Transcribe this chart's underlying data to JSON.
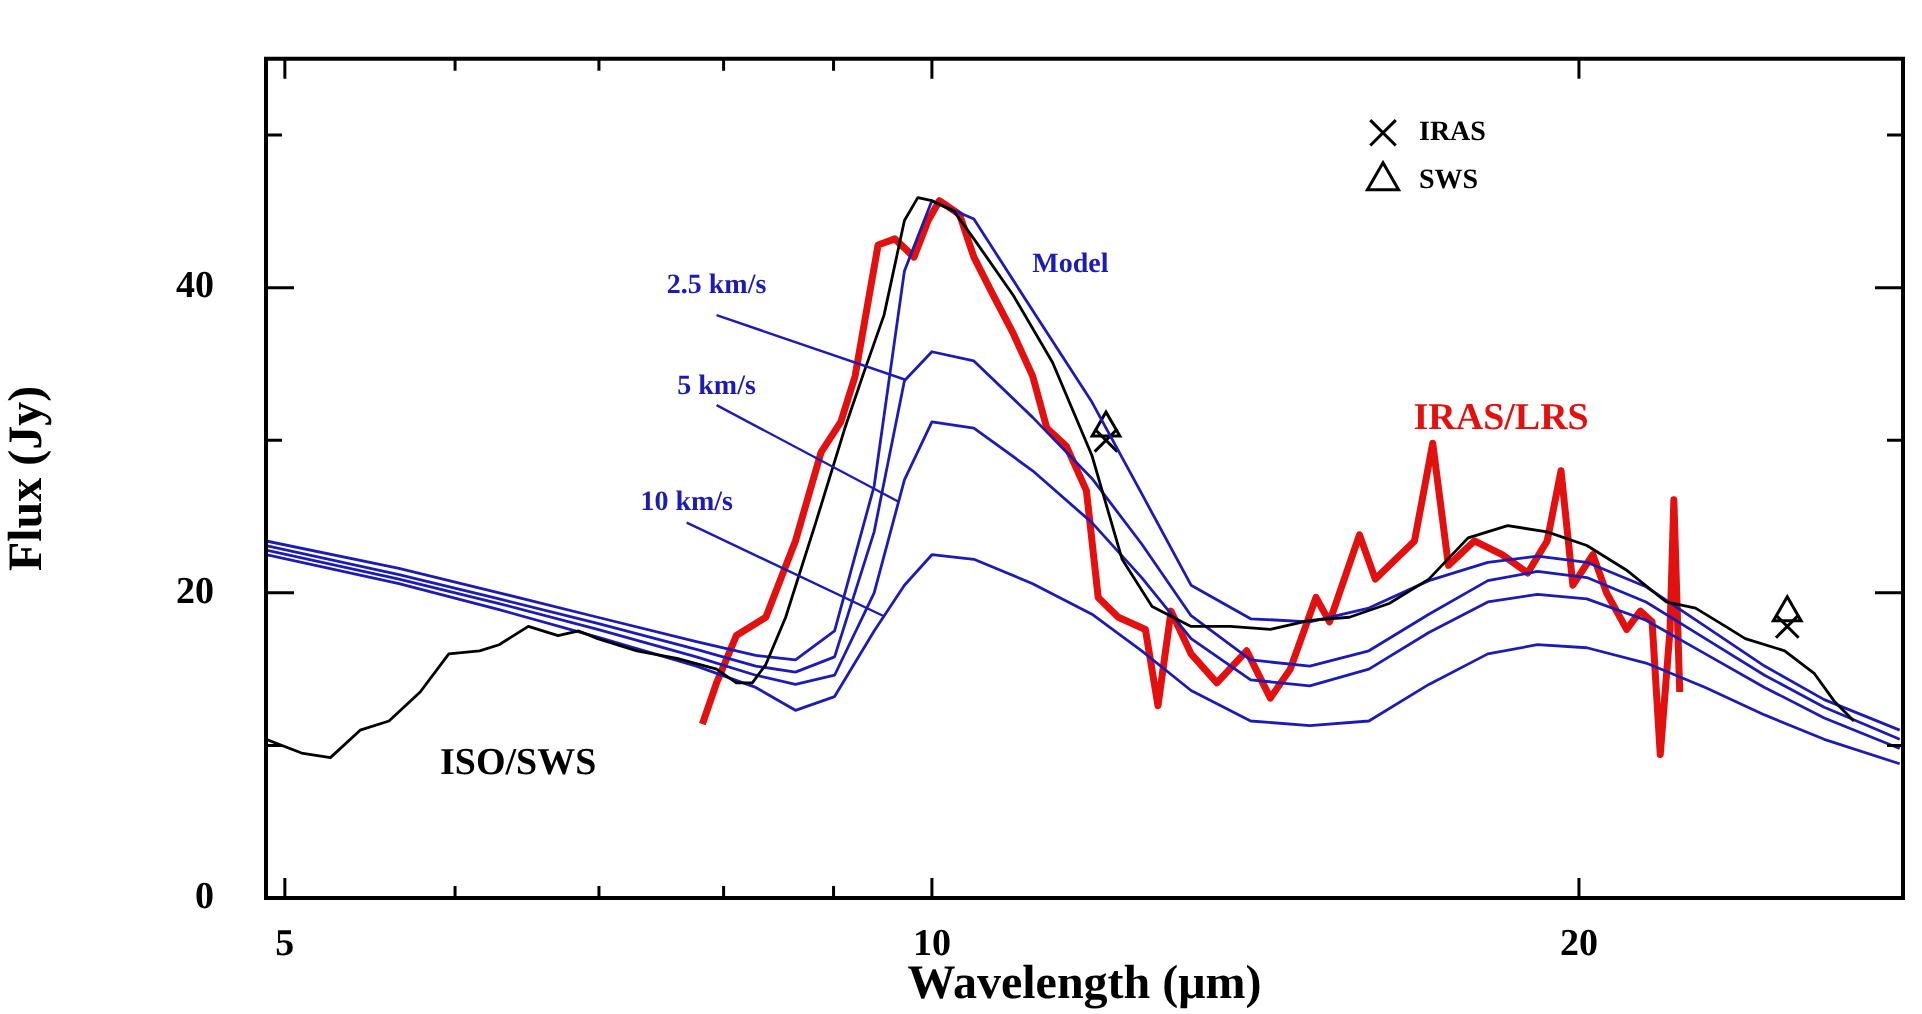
{
  "chart_data": {
    "type": "line",
    "xlabel": "Wavelength (μm)",
    "ylabel": "Flux (Jy)",
    "log": "x",
    "xlim": [
      4.9,
      28.3
    ],
    "xticks": [
      5,
      {
        "value": 6,
        "label": null
      },
      {
        "value": 7,
        "label": null
      },
      {
        "value": 8,
        "label": null
      },
      {
        "value": 9,
        "label": null
      },
      10,
      20
    ],
    "ylim": [
      0,
      55
    ],
    "yticks": [
      0,
      {
        "value": 10,
        "label": null
      },
      20,
      {
        "value": 30,
        "label": null
      },
      40,
      {
        "value": 50,
        "label": null
      }
    ],
    "legend": "top right",
    "line_style": "solid",
    "series": [
      {
        "name": "ISO/SWS",
        "color": "#000000",
        "marker": "none",
        "x": [
          4.9,
          5.09,
          5.25,
          5.42,
          5.59,
          5.78,
          5.96,
          6.16,
          6.29,
          6.49,
          6.7,
          6.85,
          6.99,
          7.29,
          7.61,
          7.94,
          8.11,
          8.25,
          8.37,
          8.55,
          8.83,
          9.11,
          9.3,
          9.5,
          9.71,
          9.85,
          10.0,
          10.24,
          10.46,
          10.91,
          11.38,
          11.87,
          12.26,
          12.66,
          13.2,
          13.77,
          14.37,
          14.99,
          15.64,
          16.32,
          17.03,
          17.76,
          18.53,
          19.33,
          20.17,
          21.04,
          21.96,
          22.66,
          23.4,
          23.9,
          24.93,
          25.74,
          26.29,
          26.85
        ],
        "values": [
          10.4,
          9.5,
          9.2,
          11.0,
          11.6,
          13.5,
          16.0,
          16.2,
          16.6,
          17.8,
          17.2,
          17.5,
          17.0,
          16.2,
          15.7,
          15.0,
          14.1,
          14.1,
          15.3,
          18.4,
          24.6,
          30.8,
          34.5,
          38.2,
          44.4,
          45.9,
          45.7,
          45.0,
          43.2,
          39.5,
          35.1,
          29.0,
          22.2,
          19.1,
          17.8,
          17.8,
          17.6,
          18.2,
          18.4,
          19.3,
          20.9,
          23.6,
          24.4,
          24.0,
          23.1,
          21.5,
          19.4,
          19.0,
          17.8,
          17.0,
          16.2,
          14.7,
          12.9,
          11.6
        ]
      },
      {
        "name": "Model",
        "color": "#1c1cb4",
        "marker": "none",
        "x": [
          4.9,
          5.65,
          6.29,
          6.99,
          7.77,
          8.28,
          8.64,
          9.01,
          9.4,
          9.71,
          10.0,
          10.46,
          11.14,
          11.87,
          12.52,
          13.2,
          14.07,
          14.99,
          15.97,
          17.03,
          18.14,
          19.13,
          20.17,
          21.49,
          22.9,
          24.4,
          26.01,
          28.2
        ],
        "values": [
          23.4,
          21.6,
          20.0,
          18.4,
          16.8,
          15.9,
          15.6,
          17.5,
          27.0,
          41.1,
          45.7,
          44.5,
          38.5,
          32.5,
          26.5,
          20.5,
          18.3,
          18.1,
          19.0,
          20.8,
          22.0,
          22.4,
          22.0,
          20.4,
          17.8,
          15.2,
          13.0,
          11.0
        ]
      },
      {
        "name": "2.5 km/s",
        "color": "#1c1cb4",
        "marker": "none",
        "x": [
          4.9,
          5.65,
          6.29,
          6.99,
          7.77,
          8.28,
          8.64,
          9.01,
          9.4,
          9.71,
          10.0,
          10.46,
          11.14,
          11.87,
          12.52,
          13.2,
          14.07,
          14.99,
          15.97,
          17.03,
          18.14,
          19.13,
          20.17,
          21.49,
          22.9,
          24.4,
          26.01,
          28.2
        ],
        "values": [
          23.1,
          21.2,
          19.6,
          18.0,
          16.3,
          15.2,
          14.8,
          15.8,
          24.0,
          33.9,
          35.8,
          35.2,
          31.5,
          27.5,
          23.2,
          18.5,
          15.6,
          15.2,
          16.2,
          18.6,
          20.8,
          21.4,
          21.0,
          19.4,
          17.0,
          14.6,
          12.5,
          10.4
        ]
      },
      {
        "name": "5 km/s",
        "color": "#1c1cb4",
        "marker": "none",
        "x": [
          4.9,
          5.65,
          6.29,
          6.99,
          7.77,
          8.28,
          8.64,
          9.01,
          9.4,
          9.71,
          10.0,
          10.46,
          11.14,
          11.87,
          12.52,
          13.2,
          14.07,
          14.99,
          15.97,
          17.03,
          18.14,
          19.13,
          20.17,
          21.49,
          22.9,
          24.4,
          26.01,
          28.2
        ],
        "values": [
          22.8,
          20.9,
          19.3,
          17.6,
          15.8,
          14.6,
          14.0,
          14.6,
          20.0,
          27.4,
          31.2,
          30.8,
          28.0,
          24.6,
          21.0,
          17.0,
          14.3,
          13.9,
          15.0,
          17.4,
          19.4,
          19.9,
          19.6,
          18.2,
          16.0,
          13.8,
          11.8,
          9.8
        ]
      },
      {
        "name": "10 km/s",
        "color": "#1c1cb4",
        "marker": "none",
        "x": [
          4.9,
          5.65,
          6.29,
          6.99,
          7.77,
          8.28,
          8.64,
          9.01,
          9.4,
          9.71,
          10.0,
          10.46,
          11.14,
          11.87,
          12.52,
          13.2,
          14.07,
          14.99,
          15.97,
          17.03,
          18.14,
          19.13,
          20.17,
          21.49,
          22.9,
          24.4,
          26.01,
          28.2
        ],
        "values": [
          22.5,
          20.6,
          18.9,
          17.1,
          15.2,
          13.8,
          12.3,
          13.2,
          17.5,
          20.5,
          22.5,
          22.2,
          20.6,
          18.6,
          16.2,
          13.6,
          11.6,
          11.3,
          11.6,
          14.0,
          16.0,
          16.6,
          16.4,
          15.4,
          13.8,
          12.0,
          10.4,
          8.8
        ]
      },
      {
        "name": "IRAS/LRS",
        "color": "#e31010",
        "marker": "none",
        "x": [
          7.82,
          7.94,
          8.11,
          8.37,
          8.64,
          8.88,
          9.07,
          9.21,
          9.34,
          9.44,
          9.61,
          9.81,
          9.96,
          10.08,
          10.3,
          10.46,
          10.68,
          10.91,
          11.14,
          11.31,
          11.55,
          11.8,
          11.95,
          12.21,
          12.57,
          12.74,
          12.92,
          13.2,
          13.57,
          14.01,
          14.37,
          14.68,
          15.09,
          15.31,
          15.81,
          16.08,
          16.77,
          17.1,
          17.39,
          17.88,
          18.42,
          18.93,
          19.33,
          19.62,
          19.87,
          20.3,
          20.6,
          21.05,
          21.36,
          21.63,
          21.82,
          22.05,
          22.14,
          22.28
        ],
        "values": [
          11.4,
          14.1,
          17.2,
          18.4,
          23.4,
          29.2,
          31.2,
          34.2,
          39.1,
          42.8,
          43.2,
          42.0,
          44.4,
          45.7,
          44.8,
          42.0,
          39.5,
          37.0,
          34.2,
          30.8,
          29.6,
          26.7,
          19.7,
          18.4,
          17.6,
          12.6,
          18.8,
          16.0,
          14.1,
          16.2,
          13.1,
          15.0,
          19.7,
          18.1,
          23.8,
          20.9,
          23.4,
          29.8,
          21.8,
          23.4,
          22.5,
          21.3,
          23.4,
          28.0,
          20.5,
          22.5,
          20.0,
          17.6,
          18.8,
          18.1,
          9.4,
          17.6,
          26.1,
          13.5
        ]
      },
      {
        "name": "IRAS",
        "type": "scatter",
        "color": "#000000",
        "marker": "cross",
        "x": [
          12.05,
          25.0
        ],
        "values": [
          30.0,
          17.8
        ]
      },
      {
        "name": "SWS",
        "type": "scatter",
        "color": "#000000",
        "marker": "triangle",
        "x": [
          12.05,
          25.0
        ],
        "values": [
          30.8,
          18.7
        ]
      }
    ]
  }
}
